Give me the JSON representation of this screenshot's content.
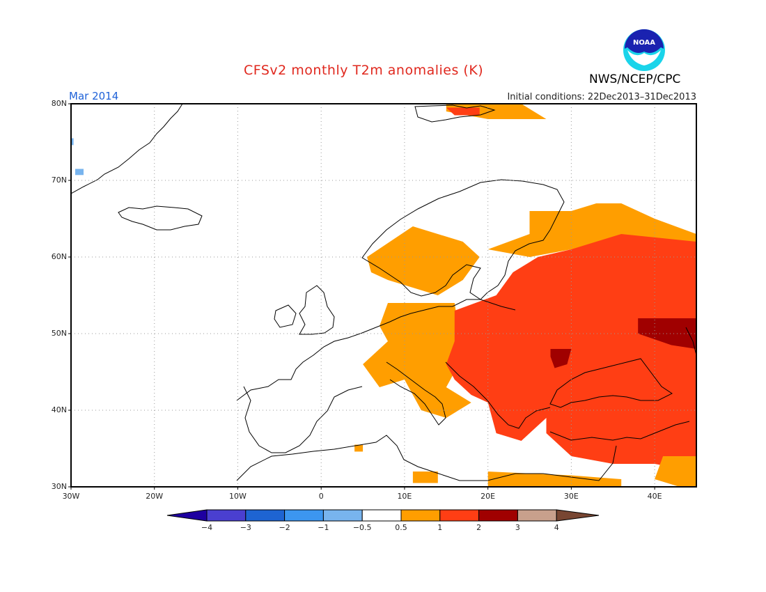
{
  "title": "CFSv2 monthly T2m anomalies (K)",
  "agency": "NWS/NCEP/CPC",
  "logo_text": "NOAA",
  "month_label": "Mar 2014",
  "initial_conditions": "Initial conditions: 22Dec2013–31Dec2013",
  "map": {
    "lon_range": [
      -30,
      45
    ],
    "lat_range": [
      30,
      80
    ],
    "y_ticks": [
      {
        "label": "80N",
        "lat": 80
      },
      {
        "label": "70N",
        "lat": 70
      },
      {
        "label": "60N",
        "lat": 60
      },
      {
        "label": "50N",
        "lat": 50
      },
      {
        "label": "40N",
        "lat": 40
      },
      {
        "label": "30N",
        "lat": 30
      }
    ],
    "x_ticks": [
      {
        "label": "30W",
        "lon": -30
      },
      {
        "label": "20W",
        "lon": -20
      },
      {
        "label": "10W",
        "lon": -10
      },
      {
        "label": "0",
        "lon": 0
      },
      {
        "label": "10E",
        "lon": 10
      },
      {
        "label": "20E",
        "lon": 20
      },
      {
        "label": "30E",
        "lon": 30
      },
      {
        "label": "40E",
        "lon": 40
      }
    ],
    "grid": "dotted",
    "anomaly_regions": [
      {
        "category": "0.5-1",
        "color": "#ff9e00",
        "polygon": [
          [
            15,
            80
          ],
          [
            24,
            80
          ],
          [
            27,
            78
          ],
          [
            20,
            78
          ],
          [
            15,
            79
          ]
        ]
      },
      {
        "category": "1-2",
        "color": "#ff3e14",
        "polygon": [
          [
            15,
            79.5
          ],
          [
            19,
            79.5
          ],
          [
            19,
            78.5
          ],
          [
            16,
            78.5
          ]
        ]
      },
      {
        "category": "0.5-1",
        "color": "#ff9e00",
        "polygon": [
          [
            5.5,
            60
          ],
          [
            11,
            64
          ],
          [
            17,
            62
          ],
          [
            19,
            60
          ],
          [
            17,
            57
          ],
          [
            14,
            55
          ],
          [
            11,
            56
          ],
          [
            8,
            57
          ],
          [
            6,
            58
          ]
        ]
      },
      {
        "category": "0.5-1",
        "color": "#ff9e00",
        "polygon": [
          [
            20,
            61
          ],
          [
            25,
            63
          ],
          [
            25,
            66
          ],
          [
            30,
            66
          ],
          [
            33,
            67
          ],
          [
            36,
            67
          ],
          [
            40,
            65
          ],
          [
            45,
            63
          ],
          [
            45,
            62
          ],
          [
            36,
            62
          ],
          [
            30,
            61
          ],
          [
            25,
            60
          ]
        ]
      },
      {
        "category": "0.5-1",
        "color": "#ff9e00",
        "polygon": [
          [
            8,
            54
          ],
          [
            16,
            54
          ],
          [
            17,
            47
          ],
          [
            15,
            43
          ],
          [
            18,
            41
          ],
          [
            15,
            39
          ],
          [
            12,
            40
          ],
          [
            10,
            44
          ],
          [
            7,
            43
          ],
          [
            5,
            46
          ],
          [
            8,
            49
          ],
          [
            7,
            51
          ]
        ]
      },
      {
        "category": "1-2",
        "color": "#ff3e14",
        "polygon": [
          [
            16,
            53
          ],
          [
            21,
            55
          ],
          [
            23,
            58
          ],
          [
            26,
            60
          ],
          [
            30,
            61
          ],
          [
            36,
            63
          ],
          [
            45,
            62
          ],
          [
            45,
            32
          ],
          [
            40,
            33
          ],
          [
            35,
            33
          ],
          [
            30,
            34
          ],
          [
            27,
            37
          ],
          [
            27,
            39
          ],
          [
            24,
            36
          ],
          [
            21,
            37
          ],
          [
            20,
            41
          ],
          [
            18,
            42
          ],
          [
            16,
            44
          ],
          [
            15,
            46
          ],
          [
            16,
            49
          ]
        ]
      },
      {
        "category": "2-3",
        "color": "#a00000",
        "polygon": [
          [
            38,
            52
          ],
          [
            45,
            52
          ],
          [
            45,
            48
          ],
          [
            42,
            48.5
          ],
          [
            38,
            50
          ]
        ]
      },
      {
        "category": "2-3",
        "color": "#a00000",
        "polygon": [
          [
            27.5,
            48
          ],
          [
            30,
            48
          ],
          [
            29.5,
            46
          ],
          [
            28,
            45.5
          ],
          [
            27.5,
            47
          ]
        ]
      },
      {
        "category": "0.5-1",
        "color": "#ff9e00",
        "polygon": [
          [
            41,
            34
          ],
          [
            45,
            34
          ],
          [
            45,
            30
          ],
          [
            43,
            30
          ],
          [
            40,
            31
          ]
        ]
      },
      {
        "category": "0.5-1",
        "color": "#ff9e00",
        "polygon": [
          [
            20,
            32
          ],
          [
            30,
            31.5
          ],
          [
            36,
            31
          ],
          [
            36,
            30
          ],
          [
            20,
            30
          ]
        ]
      },
      {
        "category": "0.5-1",
        "color": "#ff9e00",
        "polygon": [
          [
            11,
            32
          ],
          [
            14,
            32
          ],
          [
            14,
            30.5
          ],
          [
            11,
            30.5
          ]
        ]
      },
      {
        "category": "0.5-1",
        "color": "#ff9e00",
        "polygon": [
          [
            4,
            35.5
          ],
          [
            5,
            35.5
          ],
          [
            5,
            34.6
          ],
          [
            4,
            34.6
          ]
        ]
      },
      {
        "category": "-1--0.5",
        "color": "#78b4ee",
        "polygon": [
          [
            -29.5,
            71.5
          ],
          [
            -28.5,
            71.5
          ],
          [
            -28.5,
            70.7
          ],
          [
            -29.5,
            70.7
          ]
        ]
      },
      {
        "category": "-1--0.5",
        "color": "#78b4ee",
        "polygon": [
          [
            -30,
            75.5
          ],
          [
            -29.7,
            75.5
          ],
          [
            -29.7,
            74.6
          ],
          [
            -30,
            74.6
          ]
        ]
      }
    ]
  },
  "colorbar": {
    "colors": [
      "#1e00a0",
      "#4a3fd0",
      "#1e64d2",
      "#3c96f0",
      "#78b4ee",
      "#ffffff",
      "#ff9e00",
      "#ff3e14",
      "#a00000",
      "#c8a08c",
      "#784632"
    ],
    "labels": [
      "−4",
      "−3",
      "−2",
      "−1",
      "−0.5",
      "0.5",
      "1",
      "2",
      "3",
      "4"
    ]
  }
}
